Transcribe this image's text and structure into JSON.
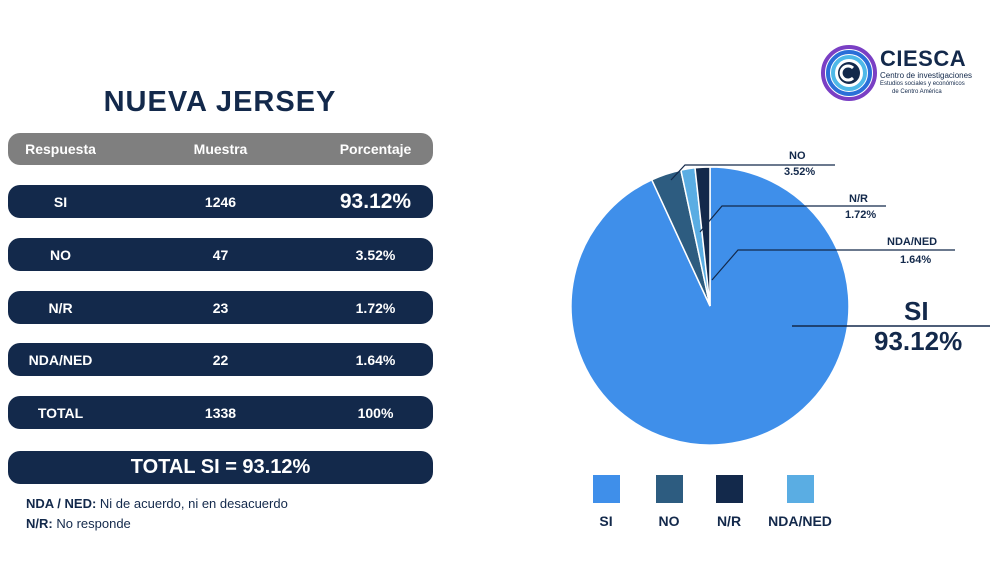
{
  "title": "NUEVA JERSEY",
  "table": {
    "headers": [
      "Respuesta",
      "Muestra",
      "Porcentaje"
    ],
    "rows": [
      {
        "respuesta": "SI",
        "muestra": "1246",
        "porcentaje": "93.12%"
      },
      {
        "respuesta": "NO",
        "muestra": "47",
        "porcentaje": "3.52%"
      },
      {
        "respuesta": "N/R",
        "muestra": "23",
        "porcentaje": "1.72%"
      },
      {
        "respuesta": "NDA/NED",
        "muestra": "22",
        "porcentaje": "1.64%"
      },
      {
        "respuesta": "TOTAL",
        "muestra": "1338",
        "porcentaje": "100%"
      }
    ]
  },
  "total_si": "TOTAL SI = 93.12%",
  "notes": [
    {
      "term": "NDA / NED:",
      "definition": "Ni de acuerdo, ni en desacuerdo"
    },
    {
      "term": "N/R:",
      "definition": "No responde"
    }
  ],
  "logo": {
    "name": "CIESCA",
    "line1": "Centro de investigaciones",
    "line2": "Estudios sociales y económicos",
    "line3": "de Centro América"
  },
  "chart_data": {
    "type": "pie",
    "categories": [
      "SI",
      "NO",
      "N/R",
      "NDA/NED"
    ],
    "values": [
      93.12,
      3.52,
      1.72,
      1.64
    ],
    "labels": [
      "93.12%",
      "3.52%",
      "1.72%",
      "1.64%"
    ],
    "colors": {
      "SI": "#3f8fea",
      "NO": "#2d5c80",
      "N/R": "#13294b",
      "NDA/NED": "#5aade3"
    },
    "slice_order": [
      "SI",
      "NO",
      "NDA/NED",
      "N/R"
    ],
    "legend": [
      "SI",
      "NO",
      "N/R",
      "NDA/NED"
    ],
    "legend_position": "bottom"
  }
}
